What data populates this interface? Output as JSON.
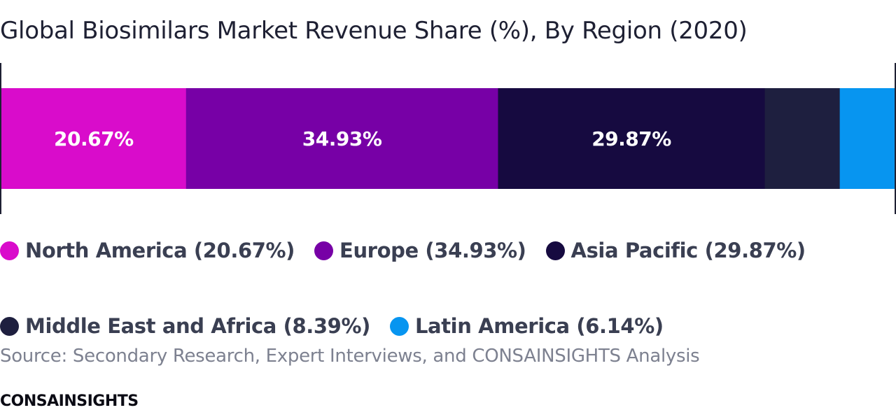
{
  "chart_data": {
    "type": "bar",
    "orientation": "horizontal-stacked-100",
    "title": "Global Biosimilars Market Revenue Share (%), By Region (2020)",
    "series": [
      {
        "name": "North America",
        "value": 20.67,
        "data_label": "20.67%",
        "legend_label": "North America (20.67%)",
        "color": "#d90ccb"
      },
      {
        "name": "Europe",
        "value": 34.93,
        "data_label": "34.93%",
        "legend_label": "Europe (34.93%)",
        "color": "#7700a6"
      },
      {
        "name": "Asia Pacific",
        "value": 29.87,
        "data_label": "29.87%",
        "legend_label": "Asia Pacific (29.87%)",
        "color": "#160a40"
      },
      {
        "name": "Middle East and Africa",
        "value": 8.39,
        "data_label": "",
        "legend_label": "Middle East and Africa (8.39%)",
        "color": "#1e1f3f"
      },
      {
        "name": "Latin America",
        "value": 6.14,
        "data_label": "",
        "legend_label": "Latin America (6.14%)",
        "color": "#0795f0"
      }
    ],
    "xlim": [
      0,
      100
    ],
    "legend_position": "bottom",
    "grid": false
  },
  "footer": {
    "source": "Source: Secondary Research, Expert Interviews, and CONSAINSIGHTS Analysis",
    "brand": "CONSAINSIGHTS"
  }
}
